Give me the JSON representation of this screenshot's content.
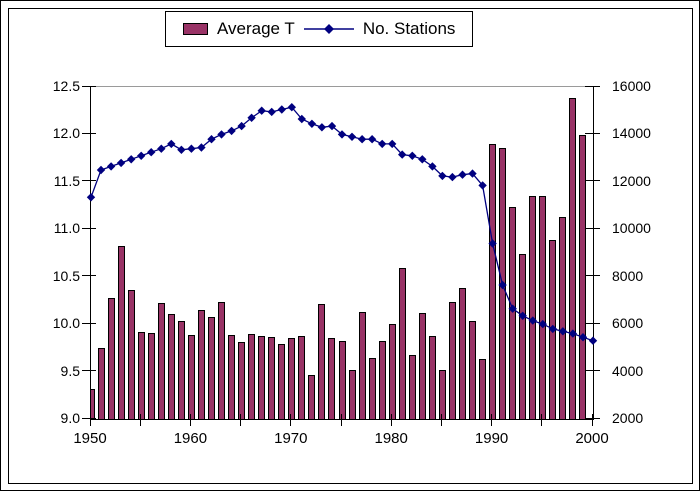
{
  "window": {
    "background": "#ffffff",
    "frame_border": "#000000"
  },
  "legend": {
    "position": "top-center",
    "items": [
      {
        "label": "Average T",
        "type": "bar",
        "color": "#993366"
      },
      {
        "label": "No. Stations",
        "type": "line",
        "color": "#000080",
        "marker": "diamond"
      }
    ]
  },
  "chart_data": {
    "type": "bar",
    "subtype": "combo-bar-line-two-axes",
    "title": "",
    "x": [
      1950,
      1951,
      1952,
      1953,
      1954,
      1955,
      1956,
      1957,
      1958,
      1959,
      1960,
      1961,
      1962,
      1963,
      1964,
      1965,
      1966,
      1967,
      1968,
      1969,
      1970,
      1971,
      1972,
      1973,
      1974,
      1975,
      1976,
      1977,
      1978,
      1979,
      1980,
      1981,
      1982,
      1983,
      1984,
      1985,
      1986,
      1987,
      1988,
      1989,
      1990,
      1991,
      1992,
      1993,
      1994,
      1995,
      1996,
      1997,
      1998,
      1999,
      2000
    ],
    "series": [
      {
        "name": "Average T",
        "type": "bar",
        "axis": "left",
        "color": "#993366",
        "values": [
          9.32,
          9.75,
          10.28,
          10.82,
          10.36,
          9.92,
          9.91,
          10.22,
          10.11,
          10.03,
          9.89,
          10.15,
          10.08,
          10.23,
          9.89,
          9.81,
          9.9,
          9.87,
          9.86,
          9.79,
          9.85,
          9.87,
          9.46,
          10.21,
          9.85,
          9.82,
          9.52,
          10.13,
          9.64,
          9.82,
          10.0,
          10.59,
          9.67,
          10.12,
          9.87,
          9.52,
          10.23,
          10.38,
          10.03,
          9.63,
          11.9,
          11.86,
          11.24,
          10.74,
          11.35,
          11.35,
          10.89,
          11.13,
          12.38,
          11.99,
          null
        ]
      },
      {
        "name": "No. Stations",
        "type": "line",
        "axis": "right",
        "color": "#000080",
        "marker": "diamond",
        "values": [
          11350,
          12500,
          12650,
          12800,
          12950,
          13100,
          13250,
          13400,
          13600,
          13350,
          13400,
          13450,
          13800,
          14000,
          14150,
          14350,
          14700,
          15000,
          14950,
          15050,
          15150,
          14650,
          14450,
          14300,
          14350,
          14000,
          13900,
          13800,
          13800,
          13600,
          13600,
          13150,
          13100,
          12950,
          12650,
          12250,
          12200,
          12300,
          12350,
          11850,
          9400,
          7650,
          6650,
          6350,
          6150,
          6000,
          5800,
          5700,
          5600,
          5450,
          5300
        ]
      }
    ],
    "left_axis": {
      "min": 9.0,
      "max": 12.5,
      "tick_labels": [
        "12.5",
        "12.0",
        "11.5",
        "11.0",
        "10.5",
        "10.0",
        "9.5",
        "9.0"
      ],
      "tick_values": [
        12.5,
        12.0,
        11.5,
        11.0,
        10.5,
        10.0,
        9.5,
        9.0
      ]
    },
    "right_axis": {
      "min": 2000,
      "max": 16000,
      "tick_labels": [
        "16000",
        "14000",
        "12000",
        "10000",
        "8000",
        "6000",
        "4000",
        "2000"
      ],
      "tick_values": [
        16000,
        14000,
        12000,
        10000,
        8000,
        6000,
        4000,
        2000
      ]
    },
    "x_axis": {
      "tick_years": [
        1950,
        1955,
        1960,
        1965,
        1970,
        1975,
        1980,
        1985,
        1990,
        1995,
        2000
      ],
      "label_years": [
        "1950",
        "1960",
        "1970",
        "1980",
        "1990",
        "2000"
      ]
    },
    "grid": false,
    "legend_position": "top"
  }
}
